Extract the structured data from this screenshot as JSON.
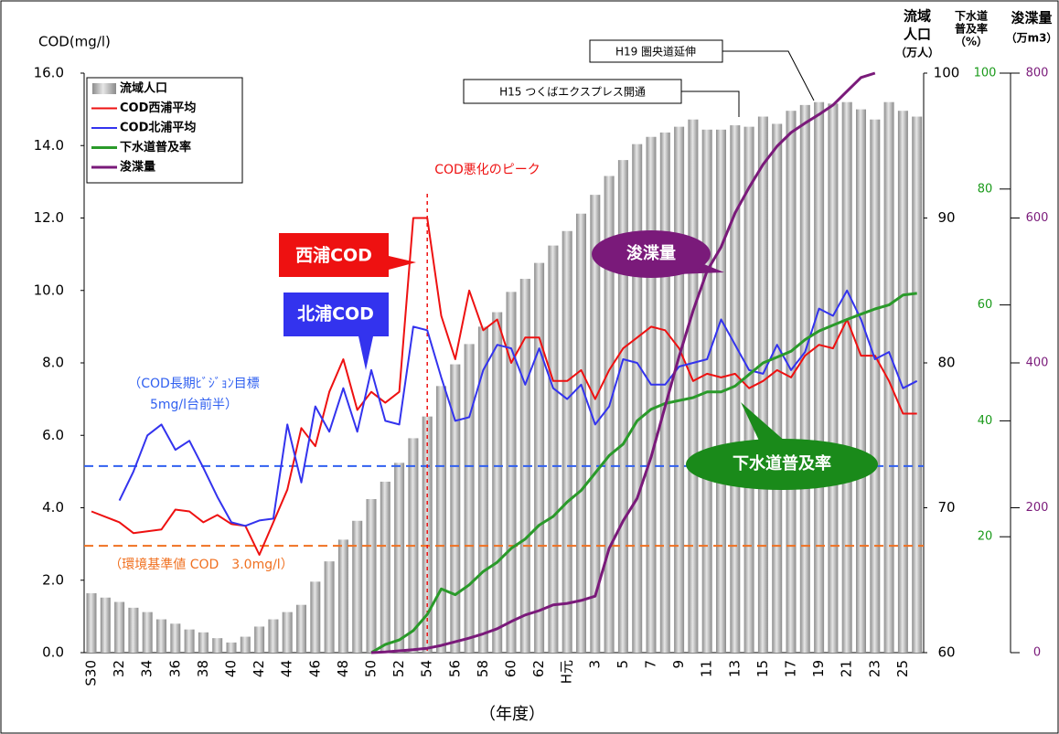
{
  "chart_data": {
    "type": "combo",
    "ylabel": "COD(mg/l)",
    "xlabel": "（年度）",
    "categories": [
      "S30",
      null,
      "32",
      null,
      "34",
      null,
      "36",
      null,
      "38",
      null,
      "40",
      null,
      "42",
      null,
      "44",
      null,
      "46",
      null,
      "48",
      null,
      "50",
      null,
      "52",
      null,
      "54",
      null,
      "56",
      null,
      "58",
      null,
      "60",
      null,
      "62",
      null,
      "H元",
      null,
      "3",
      null,
      "5",
      null,
      "7",
      null,
      "9",
      null,
      "11",
      null,
      "13",
      null,
      "15",
      null,
      "17",
      null,
      "19",
      null,
      "21",
      null,
      "23",
      null,
      "25",
      null
    ],
    "ylim": [
      0,
      16
    ],
    "yticks": [
      {
        "value": 0,
        "label": "0.0"
      },
      {
        "value": 2,
        "label": "2.0"
      },
      {
        "value": 4,
        "label": "4.0"
      },
      {
        "value": 6,
        "label": "6.0"
      },
      {
        "value": 8,
        "label": "8.0"
      },
      {
        "value": 10,
        "label": "10.0"
      },
      {
        "value": 12,
        "label": "12.0"
      },
      {
        "value": 14,
        "label": "14.0"
      },
      {
        "value": 16,
        "label": "16.0"
      }
    ],
    "y2lim": [
      60,
      100
    ],
    "y2ticks": [
      60,
      70,
      80,
      90,
      100
    ],
    "y2label": [
      "流域",
      "人口",
      "（万人）"
    ],
    "y3lim": [
      0,
      100
    ],
    "y3ticks": [
      20,
      40,
      60,
      80,
      100
    ],
    "y3label": [
      "下水道",
      "普及率",
      "（%）"
    ],
    "y3color": "#1a9a1a",
    "y4lim": [
      0,
      800
    ],
    "y4ticks": [
      0,
      200,
      400,
      600,
      800
    ],
    "y4label": [
      "浚渫量",
      "（万m3）"
    ],
    "y4color": "#7a1a7a",
    "series": [
      {
        "name": "流域人口",
        "kind": "bar",
        "axis": "y2",
        "color": "#a8a8a8",
        "values": [
          64.1,
          63.8,
          63.5,
          63.1,
          62.8,
          62.3,
          62.0,
          61.6,
          61.4,
          61.0,
          60.7,
          61.1,
          61.8,
          62.3,
          62.8,
          63.3,
          64.9,
          66.3,
          67.8,
          69.1,
          70.6,
          71.8,
          73.1,
          74.8,
          76.3,
          78.4,
          79.9,
          81.3,
          82.5,
          83.5,
          84.9,
          85.8,
          86.9,
          88.1,
          89.1,
          90.3,
          91.6,
          92.9,
          94.0,
          95.1,
          95.6,
          95.9,
          96.3,
          96.8,
          96.1,
          96.1,
          96.4,
          96.3,
          97.0,
          96.5,
          97.4,
          97.8,
          98.0,
          97.9,
          98.0,
          97.5,
          96.8,
          98.0,
          97.4,
          97.0
        ]
      },
      {
        "name": "COD西浦平均",
        "kind": "line",
        "axis": "y",
        "color": "#ee1111",
        "values": [
          3.9,
          3.75,
          3.6,
          3.3,
          3.35,
          3.4,
          3.95,
          3.9,
          3.6,
          3.8,
          3.55,
          3.5,
          2.7,
          3.6,
          4.5,
          6.2,
          5.7,
          7.2,
          8.1,
          6.7,
          7.2,
          6.9,
          7.2,
          12.0,
          12.0,
          9.3,
          8.1,
          10.0,
          8.9,
          9.2,
          8.0,
          8.7,
          8.7,
          7.5,
          7.5,
          7.8,
          7.0,
          7.8,
          8.4,
          8.7,
          9.0,
          8.9,
          8.4,
          7.5,
          7.7,
          7.6,
          7.7,
          7.3,
          7.5,
          7.8,
          7.6,
          8.2,
          8.5,
          8.4,
          9.2,
          8.2,
          8.2,
          7.5,
          6.6,
          6.6
        ]
      },
      {
        "name": "COD北浦平均",
        "kind": "line",
        "axis": "y",
        "color": "#3333ee",
        "values": [
          null,
          null,
          4.2,
          5.0,
          6.0,
          6.3,
          5.6,
          5.85,
          5.1,
          4.3,
          3.6,
          3.5,
          3.65,
          3.7,
          6.3,
          4.7,
          6.8,
          6.1,
          7.3,
          6.1,
          7.8,
          6.4,
          6.3,
          9.0,
          8.9,
          7.6,
          6.4,
          6.5,
          7.8,
          8.5,
          8.4,
          7.4,
          8.4,
          7.3,
          7.0,
          7.4,
          6.3,
          6.8,
          8.1,
          8.0,
          7.4,
          7.4,
          7.9,
          8.0,
          8.1,
          9.2,
          8.5,
          7.8,
          7.7,
          8.5,
          7.8,
          8.3,
          9.5,
          9.3,
          10.0,
          9.2,
          8.1,
          8.3,
          7.3,
          7.5
        ]
      },
      {
        "name": "下水道普及率",
        "kind": "line",
        "axis": "y3",
        "color": "#2a9a2a",
        "values": [
          null,
          null,
          null,
          null,
          null,
          null,
          null,
          null,
          null,
          null,
          null,
          null,
          null,
          null,
          null,
          null,
          null,
          null,
          null,
          null,
          0,
          1.4,
          2.2,
          3.8,
          6.6,
          11,
          10,
          11.7,
          14,
          15.6,
          18,
          19.6,
          22,
          23.5,
          26,
          28,
          31,
          34,
          36,
          40,
          42,
          43,
          43.5,
          44,
          45,
          45,
          46,
          48,
          50,
          51,
          52,
          54,
          55.5,
          56.5,
          57.5,
          58.4,
          59.3,
          60,
          61.7,
          62
        ]
      },
      {
        "name": "浚渫量",
        "kind": "line",
        "axis": "y4",
        "color": "#7a1a7a",
        "values": [
          null,
          null,
          null,
          null,
          null,
          null,
          null,
          null,
          null,
          null,
          null,
          null,
          null,
          null,
          null,
          null,
          null,
          null,
          null,
          null,
          0,
          1,
          2.5,
          4,
          6,
          10,
          15,
          20,
          26,
          33,
          43,
          52,
          58,
          66,
          68,
          72,
          78,
          144,
          182,
          213,
          270,
          340,
          409,
          472,
          527,
          560,
          607,
          642,
          674,
          699,
          718,
          731,
          743,
          756,
          775,
          794,
          800,
          null,
          null,
          null
        ]
      }
    ],
    "hlines": [
      {
        "value": 2.95,
        "color": "#f07020"
      },
      {
        "value": 5.15,
        "color": "#3060f0"
      }
    ],
    "vline": {
      "category": "54",
      "color": "#ee1111"
    },
    "annotations": [
      "西浦COD",
      "北浦COD",
      "浚渫量",
      "下水道普及率",
      "H19 圏央道延伸",
      "H15 つくばエクスプレス開通",
      "COD悪化のピーク",
      "（COD長期ﾋﾞｼﾞｮﾝ目標",
      "5mg/l台前半）",
      "（環境基準値 COD　3.0mg/l）"
    ]
  }
}
